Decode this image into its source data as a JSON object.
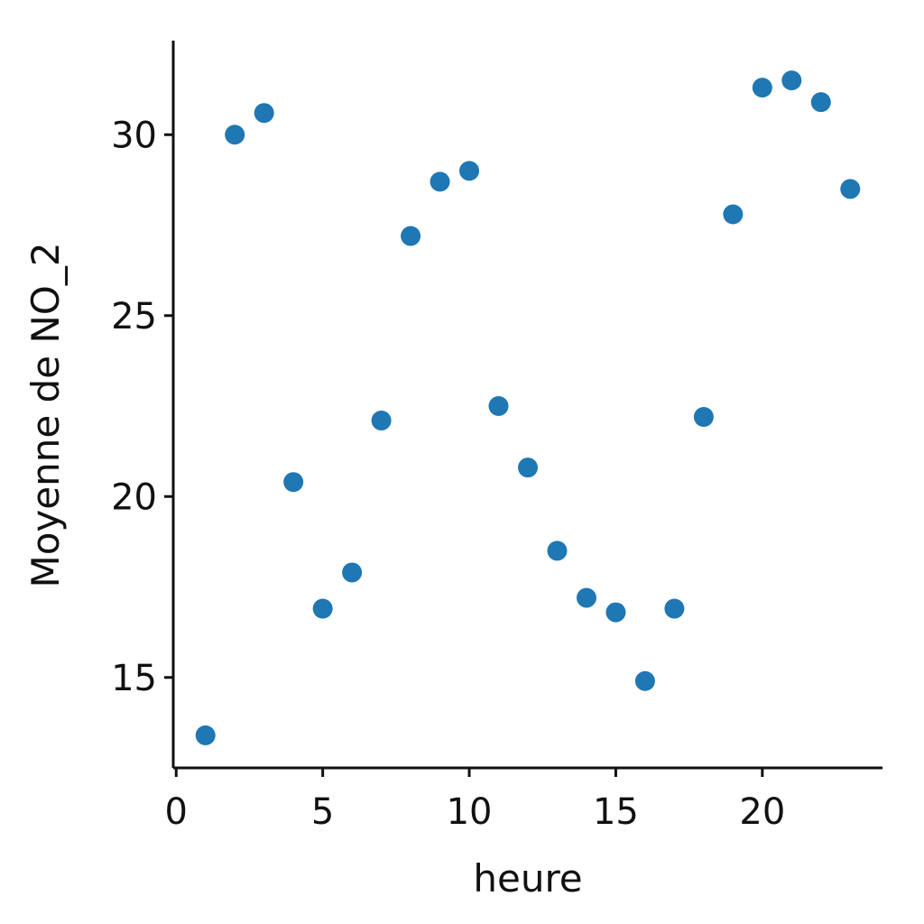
{
  "chart_data": {
    "type": "scatter",
    "title": "",
    "xlabel": "heure",
    "ylabel": "Moyenne de NO_2",
    "xlim": [
      -0.1,
      24.1
    ],
    "ylim": [
      12.5,
      32.6
    ],
    "xticks": [
      0,
      5,
      10,
      15,
      20
    ],
    "yticks": [
      15,
      20,
      25,
      30
    ],
    "grid": false,
    "legend": "none",
    "marker_color": "#1f77b4",
    "series": [
      {
        "x": [
          1,
          2,
          3,
          4,
          5,
          6,
          7,
          8,
          9,
          10,
          11,
          12,
          13,
          14,
          15,
          16,
          17,
          18,
          19,
          20,
          21,
          22,
          23
        ],
        "y": [
          13.4,
          30.0,
          30.6,
          20.4,
          16.9,
          17.9,
          22.1,
          27.2,
          28.7,
          29.0,
          22.5,
          20.8,
          18.5,
          17.2,
          16.8,
          14.9,
          16.9,
          22.2,
          27.8,
          31.3,
          31.5,
          30.9,
          28.5
        ]
      }
    ]
  }
}
